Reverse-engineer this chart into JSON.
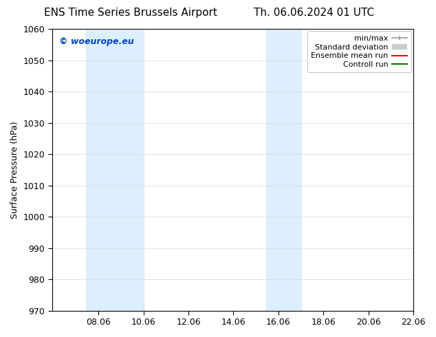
{
  "title_left": "ENS Time Series Brussels Airport",
  "title_right": "Th. 06.06.2024 01 UTC",
  "ylabel": "Surface Pressure (hPa)",
  "ylim": [
    970,
    1060
  ],
  "yticks": [
    970,
    980,
    990,
    1000,
    1010,
    1020,
    1030,
    1040,
    1050,
    1060
  ],
  "xlim_start": 6.0,
  "xlim_end": 22.06,
  "xtick_labels": [
    "08.06",
    "10.06",
    "12.06",
    "14.06",
    "16.06",
    "18.06",
    "20.06",
    "22.06"
  ],
  "xtick_positions": [
    8.06,
    10.06,
    12.06,
    14.06,
    16.06,
    18.06,
    20.06,
    22.06
  ],
  "shaded_bands": [
    {
      "xmin": 7.5,
      "xmax": 10.06
    },
    {
      "xmin": 15.5,
      "xmax": 17.06
    }
  ],
  "shade_color": "#ddeeff",
  "watermark": "© woeurope.eu",
  "watermark_color": "#0044bb",
  "legend_entries": [
    {
      "label": "min/max",
      "color": "#999999",
      "lw": 1.2
    },
    {
      "label": "Standard deviation",
      "color": "#cccccc",
      "lw": 6
    },
    {
      "label": "Ensemble mean run",
      "color": "#ff0000",
      "lw": 1.5
    },
    {
      "label": "Controll run",
      "color": "#007700",
      "lw": 1.5
    }
  ],
  "bg_color": "#ffffff",
  "grid_color": "#dddddd",
  "title_fontsize": 11,
  "label_fontsize": 9,
  "tick_fontsize": 9,
  "legend_fontsize": 8
}
